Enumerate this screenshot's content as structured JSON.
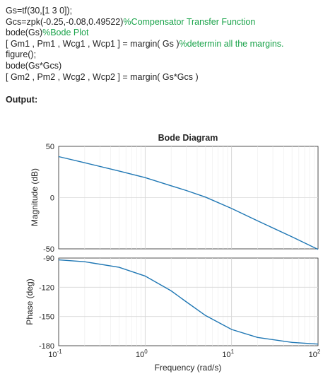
{
  "code": {
    "lines": [
      {
        "code": "Gs=tf(30,[1 3 0]);",
        "comment": ""
      },
      {
        "code": "Gcs=zpk(-0.25,-0.08,0.49522)",
        "comment": "%Compensator Transfer Function"
      },
      {
        "code": "bode(Gs)",
        "comment": "%Bode Plot"
      },
      {
        "code": "[ Gm1 , Pm1 , Wcg1 , Wcp1 ] = margin( Gs )",
        "comment": "%determin all the margins."
      },
      {
        "code": "figure();",
        "comment": ""
      },
      {
        "code": "bode(Gs*Gcs)",
        "comment": ""
      },
      {
        "code": "[ Gm2 , Pm2 , Wcg2 , Wcp2 ] = margin( Gs*Gcs )",
        "comment": ""
      }
    ],
    "comment_color": "#1aa34a"
  },
  "output_label": "Output:",
  "figure": {
    "title": "Bode Diagram",
    "line_color": "#1f77b4",
    "magnitude": {
      "ylabel": "Magnitude (dB)",
      "ylim": [
        -50,
        50
      ],
      "yticks": [
        "50",
        "0",
        "-50"
      ]
    },
    "phase": {
      "ylabel": "Phase (deg)",
      "ylim": [
        -180,
        -90
      ],
      "yticks": [
        "-90",
        "-120",
        "-150",
        "-180"
      ]
    },
    "xlabel": "Frequency  (rad/s)",
    "xscale": "log",
    "xlim": [
      0.1,
      100
    ],
    "xticks": [
      {
        "base": "10",
        "exp": "-1"
      },
      {
        "base": "10",
        "exp": "0"
      },
      {
        "base": "10",
        "exp": "1"
      },
      {
        "base": "10",
        "exp": "2"
      }
    ]
  },
  "chart_data": {
    "type": "line",
    "title": "Bode Diagram",
    "xlabel": "Frequency  (rad/s)",
    "xscale": "log",
    "xlim": [
      0.1,
      100
    ],
    "grid": true,
    "series": [
      {
        "panel": "magnitude",
        "ylabel": "Magnitude (dB)",
        "ylim": [
          -50,
          50
        ],
        "x": [
          0.1,
          0.2,
          0.5,
          1,
          2,
          3,
          5,
          10,
          20,
          50,
          100
        ],
        "y": [
          40.0,
          34.0,
          25.9,
          19.5,
          11.5,
          6.9,
          0.5,
          -10.6,
          -22.7,
          -38.3,
          -50.5
        ]
      },
      {
        "panel": "phase",
        "ylabel": "Phase (deg)",
        "ylim": [
          -180,
          -90
        ],
        "x": [
          0.1,
          0.2,
          0.5,
          1,
          2,
          3,
          5,
          10,
          20,
          50,
          100
        ],
        "y": [
          -91.9,
          -93.8,
          -99.5,
          -108.4,
          -123.7,
          -135.0,
          -149.0,
          -163.3,
          -171.5,
          -176.6,
          -178.3
        ]
      }
    ]
  }
}
